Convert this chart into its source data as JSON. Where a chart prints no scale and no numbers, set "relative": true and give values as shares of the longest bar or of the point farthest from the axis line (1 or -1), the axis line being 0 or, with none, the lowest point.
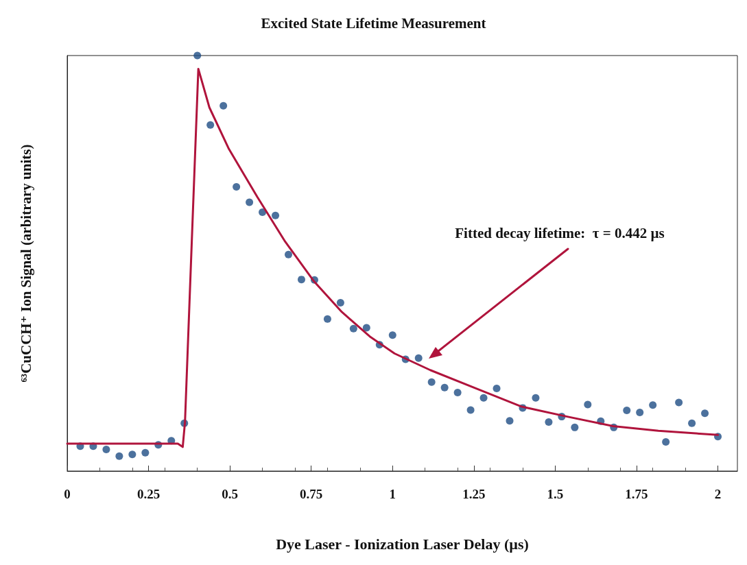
{
  "chart_data": {
    "type": "scatter",
    "title": "Excited State Lifetime Measurement",
    "xlabel": "Dye Laser - Ionization Laser Delay (µs)",
    "ylabel": "⁶³CuCCH⁺ Ion Signal (arbitrary units)",
    "relative": true,
    "xlim": [
      0,
      2.06
    ],
    "xticks": [
      0,
      0.25,
      0.5,
      0.75,
      1,
      1.25,
      1.5,
      1.75,
      2
    ],
    "grid": false,
    "marker": "circle",
    "annotations": [
      "Fitted decay lifetime:  τ = 0.442 µs"
    ],
    "series": [
      {
        "type": "scatter",
        "color": "#1f4e85",
        "x": [
          0.04,
          0.08,
          0.12,
          0.16,
          0.2,
          0.24,
          0.28,
          0.32,
          0.36,
          0.4,
          0.44,
          0.48,
          0.52,
          0.56,
          0.6,
          0.64,
          0.68,
          0.72,
          0.76,
          0.8,
          0.84,
          0.88,
          0.92,
          0.96,
          1,
          1.04,
          1.08,
          1.12,
          1.16,
          1.2,
          1.24,
          1.28,
          1.32,
          1.36,
          1.4,
          1.44,
          1.48,
          1.52,
          1.56,
          1.6,
          1.64,
          1.68,
          1.72,
          1.76,
          1.8,
          1.84,
          1.88,
          1.92,
          1.96,
          2
        ],
        "values": [
          0.06,
          0.06,
          0.052,
          0.036,
          0.04,
          0.044,
          0.063,
          0.073,
          0.115,
          1,
          0.833,
          0.879,
          0.684,
          0.647,
          0.623,
          0.615,
          0.521,
          0.461,
          0.46,
          0.366,
          0.405,
          0.343,
          0.345,
          0.304,
          0.327,
          0.269,
          0.272,
          0.214,
          0.201,
          0.189,
          0.147,
          0.176,
          0.199,
          0.121,
          0.152,
          0.176,
          0.118,
          0.131,
          0.105,
          0.16,
          0.12,
          0.105,
          0.146,
          0.141,
          0.159,
          0.07,
          0.165,
          0.115,
          0.139,
          0.083
        ]
      },
      {
        "type": "line",
        "color": "#b0143c",
        "marker": "none",
        "line_style": "solid",
        "x": [
          0,
          0.34,
          0.355,
          0.362,
          0.383,
          0.403,
          0.437,
          0.497,
          0.584,
          0.67,
          0.757,
          0.844,
          0.93,
          1.006,
          1.116,
          1.256,
          1.397,
          1.537,
          1.678,
          1.817,
          2
        ],
        "values": [
          0.066,
          0.066,
          0.058,
          0.118,
          0.555,
          0.968,
          0.875,
          0.775,
          0.66,
          0.552,
          0.458,
          0.383,
          0.324,
          0.283,
          0.243,
          0.199,
          0.155,
          0.131,
          0.108,
          0.097,
          0.087
        ]
      }
    ]
  }
}
